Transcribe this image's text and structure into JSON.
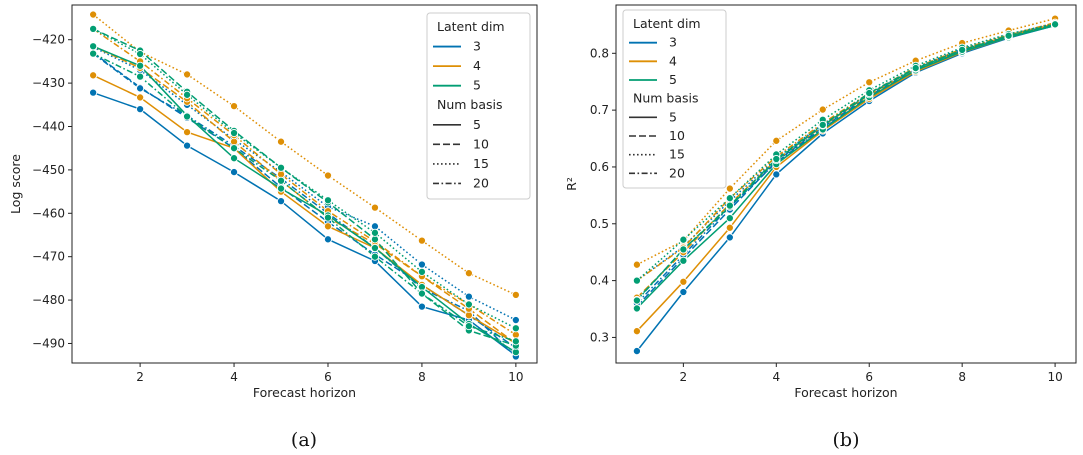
{
  "chart_data": [
    {
      "type": "line",
      "caption": "(a)",
      "xlabel": "Forecast horizon",
      "ylabel": "Log score",
      "xlim": [
        0.55,
        10.45
      ],
      "ylim": [
        -494.5,
        -412
      ],
      "xticks": [
        2,
        4,
        6,
        8,
        10
      ],
      "yticks": [
        -420,
        -430,
        -440,
        -450,
        -460,
        -470,
        -480,
        -490
      ],
      "grid": false,
      "legend_position": "top-right",
      "x": [
        1,
        2,
        3,
        4,
        5,
        6,
        7,
        8,
        9,
        10
      ],
      "series": [
        {
          "latent_dim": "3",
          "num_basis": "5",
          "values": [
            -432.2,
            -436.0,
            -444.4,
            -450.5,
            -457.2,
            -466.0,
            -471.0,
            -481.5,
            -484.6,
            -492.8
          ]
        },
        {
          "latent_dim": "3",
          "num_basis": "10",
          "values": [
            -423.0,
            -431.0,
            -438.0,
            -445.0,
            -454.0,
            -462.0,
            -469.5,
            -476.5,
            -483.5,
            -491.0
          ]
        },
        {
          "latent_dim": "3",
          "num_basis": "15",
          "values": [
            -421.7,
            -427.0,
            -435.0,
            -443.0,
            -450.5,
            -458.5,
            -463.0,
            -471.8,
            -479.2,
            -484.6
          ]
        },
        {
          "latent_dim": "3",
          "num_basis": "20",
          "values": [
            -423.2,
            -431.2,
            -437.5,
            -444.5,
            -452.0,
            -460.0,
            -468.0,
            -477.3,
            -482.5,
            -493.0
          ]
        },
        {
          "latent_dim": "4",
          "num_basis": "5",
          "values": [
            -428.2,
            -433.3,
            -441.3,
            -445.0,
            -455.0,
            -463.0,
            -468.0,
            -476.5,
            -483.5,
            -490.0
          ]
        },
        {
          "latent_dim": "4",
          "num_basis": "10",
          "values": [
            -421.5,
            -426.5,
            -434.3,
            -443.5,
            -452.5,
            -461.0,
            -467.0,
            -474.5,
            -482.0,
            -490.0
          ]
        },
        {
          "latent_dim": "4",
          "num_basis": "15",
          "values": [
            -414.2,
            -422.8,
            -428.0,
            -435.3,
            -443.5,
            -451.3,
            -458.7,
            -466.3,
            -473.8,
            -478.8
          ]
        },
        {
          "latent_dim": "4",
          "num_basis": "20",
          "values": [
            -417.5,
            -425.0,
            -433.5,
            -442.0,
            -451.0,
            -459.5,
            -466.5,
            -474.5,
            -481.0,
            -488.0
          ]
        },
        {
          "latent_dim": "5",
          "num_basis": "5",
          "values": [
            -421.5,
            -426.0,
            -437.5,
            -447.3,
            -454.3,
            -460.5,
            -468.0,
            -477.0,
            -485.5,
            -492.0
          ]
        },
        {
          "latent_dim": "5",
          "num_basis": "10",
          "values": [
            -417.5,
            -422.5,
            -432.0,
            -441.0,
            -449.5,
            -457.5,
            -466.0,
            -478.5,
            -487.0,
            -490.5
          ]
        },
        {
          "latent_dim": "5",
          "num_basis": "15",
          "values": [
            -417.5,
            -423.3,
            -432.7,
            -441.5,
            -449.5,
            -457.0,
            -464.5,
            -473.5,
            -481.0,
            -486.5
          ]
        },
        {
          "latent_dim": "5",
          "num_basis": "20",
          "values": [
            -423.2,
            -428.5,
            -437.7,
            -445.0,
            -452.5,
            -461.0,
            -470.0,
            -478.5,
            -486.0,
            -489.5
          ]
        }
      ]
    },
    {
      "type": "line",
      "caption": "(b)",
      "xlabel": "Forecast horizon",
      "ylabel": "R²",
      "xlim": [
        0.55,
        10.45
      ],
      "ylim": [
        0.255,
        0.885
      ],
      "xticks": [
        2,
        4,
        6,
        8,
        10
      ],
      "yticks": [
        0.3,
        0.4,
        0.5,
        0.6,
        0.7,
        0.8
      ],
      "grid": false,
      "legend_position": "top-left",
      "x": [
        1,
        2,
        3,
        4,
        5,
        6,
        7,
        8,
        9,
        10
      ],
      "series": [
        {
          "latent_dim": "3",
          "num_basis": "5",
          "values": [
            0.276,
            0.38,
            0.476,
            0.587,
            0.659,
            0.716,
            0.766,
            0.8,
            0.827,
            0.849
          ]
        },
        {
          "latent_dim": "3",
          "num_basis": "10",
          "values": [
            0.355,
            0.44,
            0.525,
            0.61,
            0.67,
            0.725,
            0.772,
            0.805,
            0.83,
            0.851
          ]
        },
        {
          "latent_dim": "3",
          "num_basis": "15",
          "values": [
            0.4,
            0.46,
            0.54,
            0.615,
            0.675,
            0.728,
            0.775,
            0.808,
            0.833,
            0.853
          ]
        },
        {
          "latent_dim": "3",
          "num_basis": "20",
          "values": [
            0.36,
            0.445,
            0.53,
            0.608,
            0.668,
            0.722,
            0.77,
            0.803,
            0.829,
            0.85
          ]
        },
        {
          "latent_dim": "4",
          "num_basis": "5",
          "values": [
            0.311,
            0.398,
            0.493,
            0.6,
            0.664,
            0.72,
            0.768,
            0.802,
            0.828,
            0.85
          ]
        },
        {
          "latent_dim": "4",
          "num_basis": "10",
          "values": [
            0.37,
            0.45,
            0.535,
            0.612,
            0.672,
            0.727,
            0.773,
            0.806,
            0.831,
            0.852
          ]
        },
        {
          "latent_dim": "4",
          "num_basis": "15",
          "values": [
            0.428,
            0.47,
            0.562,
            0.646,
            0.701,
            0.749,
            0.787,
            0.818,
            0.84,
            0.861
          ]
        },
        {
          "latent_dim": "4",
          "num_basis": "20",
          "values": [
            0.4,
            0.458,
            0.545,
            0.618,
            0.677,
            0.73,
            0.775,
            0.808,
            0.832,
            0.854
          ]
        },
        {
          "latent_dim": "5",
          "num_basis": "5",
          "values": [
            0.351,
            0.435,
            0.51,
            0.605,
            0.666,
            0.723,
            0.77,
            0.803,
            0.828,
            0.849
          ]
        },
        {
          "latent_dim": "5",
          "num_basis": "10",
          "values": [
            0.366,
            0.455,
            0.53,
            0.612,
            0.673,
            0.728,
            0.773,
            0.806,
            0.83,
            0.85
          ]
        },
        {
          "latent_dim": "5",
          "num_basis": "15",
          "values": [
            0.4,
            0.472,
            0.545,
            0.622,
            0.683,
            0.735,
            0.778,
            0.81,
            0.834,
            0.852
          ]
        },
        {
          "latent_dim": "5",
          "num_basis": "20",
          "values": [
            0.365,
            0.455,
            0.532,
            0.614,
            0.674,
            0.73,
            0.774,
            0.806,
            0.831,
            0.851
          ]
        }
      ]
    }
  ],
  "legend": {
    "hue_title": "Latent dim",
    "hue_entries": [
      {
        "label": "3",
        "color": "#0173b2"
      },
      {
        "label": "4",
        "color": "#de8f05"
      },
      {
        "label": "5",
        "color": "#029e73"
      }
    ],
    "style_title": "Num basis",
    "style_entries": [
      {
        "label": "5",
        "dash": "solid"
      },
      {
        "label": "10",
        "dash": "dashed"
      },
      {
        "label": "15",
        "dash": "dotted"
      },
      {
        "label": "20",
        "dash": "dashdot"
      }
    ]
  },
  "colors": {
    "3": "#0173b2",
    "4": "#de8f05",
    "5": "#029e73"
  }
}
